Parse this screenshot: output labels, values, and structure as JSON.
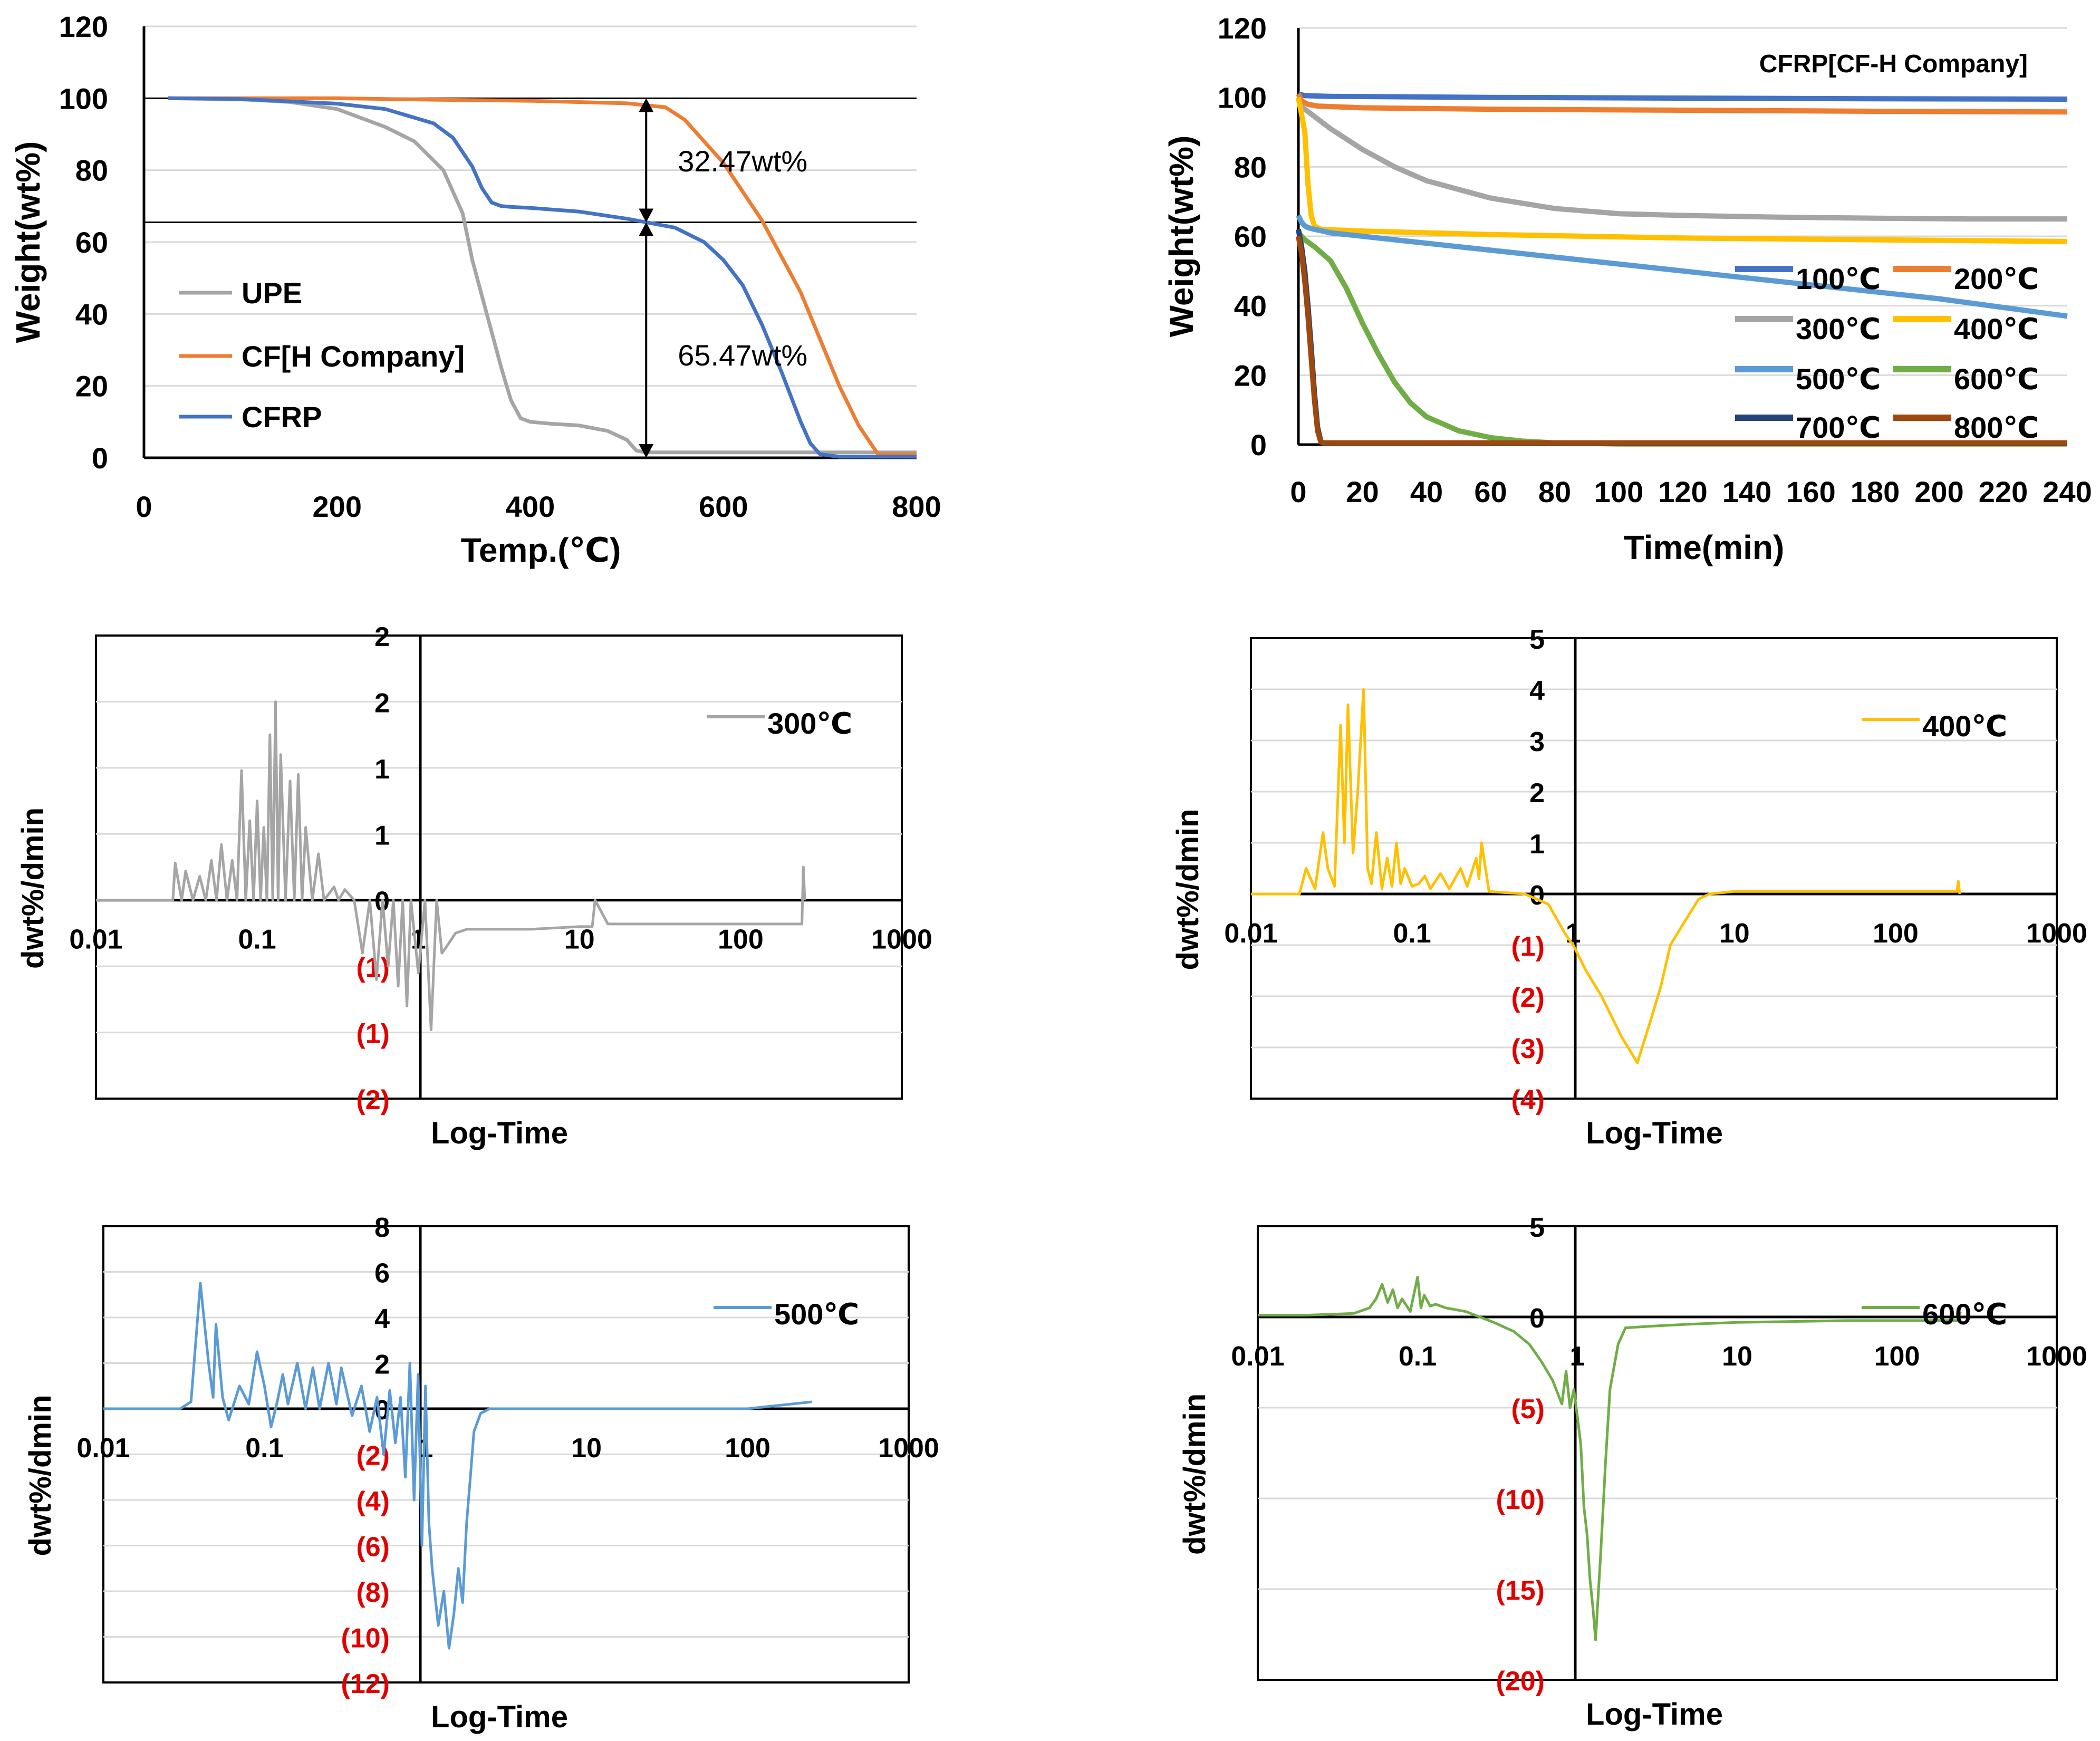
{
  "chart_data": [
    {
      "id": "tga",
      "type": "line",
      "xlabel": "Temp.(℃)",
      "ylabel": "Weight(wt%)",
      "xlim": [
        0,
        800
      ],
      "ylim": [
        0,
        120
      ],
      "xticks": [
        "0",
        "200",
        "400",
        "600",
        "800"
      ],
      "yticks": [
        "0",
        "20",
        "40",
        "60",
        "80",
        "100",
        "120"
      ],
      "reference_lines_y": [
        100,
        65.5
      ],
      "annotations": [
        {
          "text": "32.47wt%",
          "x": 520,
          "y": 82
        },
        {
          "text": "65.47wt%",
          "x": 520,
          "y": 28
        }
      ],
      "series": [
        {
          "name": "UPE",
          "color": "#a5a5a5",
          "x": [
            25,
            100,
            150,
            200,
            250,
            280,
            310,
            330,
            340,
            350,
            360,
            370,
            380,
            390,
            400,
            420,
            450,
            480,
            500,
            510,
            520,
            600,
            700,
            800
          ],
          "y": [
            100,
            99.7,
            99,
            97,
            92,
            88,
            80,
            68,
            55,
            45,
            35,
            25,
            16,
            11,
            10,
            9.5,
            9,
            7.5,
            5,
            2,
            1.5,
            1.5,
            1.5,
            1.5
          ]
        },
        {
          "name": "CF[H Company]",
          "color": "#ed7d31",
          "x": [
            25,
            100,
            200,
            300,
            400,
            500,
            540,
            560,
            580,
            600,
            640,
            680,
            700,
            720,
            740,
            760,
            800
          ],
          "y": [
            100,
            100,
            100,
            99.6,
            99.3,
            98.6,
            97.5,
            94,
            88,
            82,
            66,
            46,
            33,
            20,
            9,
            1,
            1
          ]
        },
        {
          "name": "CFRP",
          "color": "#4472c4",
          "x": [
            25,
            100,
            200,
            250,
            300,
            320,
            340,
            350,
            360,
            370,
            380,
            400,
            450,
            500,
            550,
            580,
            600,
            620,
            640,
            660,
            680,
            690,
            700,
            720,
            800
          ],
          "y": [
            100,
            99.8,
            98.5,
            97,
            93,
            89,
            81,
            75,
            71,
            70,
            69.8,
            69.5,
            68.5,
            66.5,
            64,
            60,
            55,
            48,
            37,
            24,
            10,
            4,
            1,
            0.3,
            0.3
          ]
        }
      ]
    },
    {
      "id": "isothermal",
      "type": "line",
      "title": "CFRP[CF-H Company]",
      "xlabel": "Time(min)",
      "ylabel": "Weight(wt%)",
      "xlim": [
        0,
        240
      ],
      "ylim": [
        0,
        120
      ],
      "xticks": [
        "0",
        "20",
        "40",
        "60",
        "80",
        "100",
        "120",
        "140",
        "160",
        "180",
        "200",
        "220",
        "240"
      ],
      "yticks": [
        "0",
        "20",
        "40",
        "60",
        "80",
        "100",
        "120"
      ],
      "series": [
        {
          "name": "100℃",
          "color": "#4472c4",
          "x": [
            0,
            2,
            10,
            60,
            120,
            180,
            240
          ],
          "y": [
            101,
            100.5,
            100.3,
            100,
            99.8,
            99.6,
            99.5
          ]
        },
        {
          "name": "200℃",
          "color": "#ed7d31",
          "x": [
            0,
            1,
            3,
            6,
            20,
            60,
            120,
            180,
            240
          ],
          "y": [
            101,
            99,
            98,
            97.5,
            97,
            96.6,
            96.3,
            96,
            95.8
          ]
        },
        {
          "name": "300℃",
          "color": "#a5a5a5",
          "x": [
            0,
            10,
            20,
            30,
            40,
            60,
            80,
            100,
            120,
            150,
            180,
            210,
            240
          ],
          "y": [
            98,
            91,
            85,
            80,
            76,
            71,
            68,
            66.5,
            66,
            65.5,
            65.2,
            65,
            65
          ]
        },
        {
          "name": "400℃",
          "color": "#ffc000",
          "x": [
            0,
            2,
            3,
            4,
            5,
            7,
            20,
            60,
            120,
            180,
            240
          ],
          "y": [
            100,
            90,
            75,
            66,
            63,
            62,
            61.5,
            60.5,
            59.5,
            59,
            58.5
          ]
        },
        {
          "name": "500℃",
          "color": "#5b9bd5",
          "x": [
            0,
            1,
            2,
            3,
            5,
            10,
            40,
            80,
            120,
            160,
            200,
            240
          ],
          "y": [
            66,
            64,
            63,
            62.5,
            62,
            61,
            58,
            54,
            50,
            46,
            42,
            37
          ]
        },
        {
          "name": "600℃",
          "color": "#70ad47",
          "x": [
            0,
            2,
            5,
            10,
            15,
            20,
            25,
            30,
            35,
            40,
            50,
            60,
            70,
            80,
            100,
            240
          ],
          "y": [
            61,
            59,
            57,
            53,
            45,
            35,
            26,
            18,
            12,
            8,
            4,
            2,
            1,
            0.5,
            0.2,
            0.2
          ]
        },
        {
          "name": "700℃",
          "color": "#264478",
          "x": [
            0,
            1,
            2,
            3,
            4,
            5,
            6,
            7,
            8,
            240
          ],
          "y": [
            62,
            57,
            50,
            40,
            28,
            15,
            5,
            1,
            0.3,
            0.3
          ]
        },
        {
          "name": "800℃",
          "color": "#9e480e",
          "x": [
            0,
            1,
            2,
            3,
            4,
            5,
            6,
            7,
            8,
            240
          ],
          "y": [
            60,
            55,
            47,
            37,
            25,
            13,
            4,
            0.8,
            0.5,
            0.5
          ]
        }
      ]
    },
    {
      "id": "dtg300",
      "type": "line",
      "legend": "300℃",
      "color": "#a5a5a5",
      "xlabel": "Log-Time",
      "ylabel": "dwt%/dmin",
      "xscale": "log",
      "xlim": [
        0.01,
        1000
      ],
      "ylim": [
        -1.5,
        2
      ],
      "xticks": [
        "0.01",
        "0.1",
        "1",
        "10",
        "100",
        "1000"
      ],
      "yticks": [
        "(2)",
        "(1)",
        "(1)",
        "0",
        "1",
        "1",
        "2",
        "2"
      ],
      "ytick_values": [
        -1.5,
        -1,
        -0.5,
        0,
        0.5,
        1,
        1.5,
        2
      ],
      "x": [
        0.01,
        0.03,
        0.031,
        0.034,
        0.036,
        0.04,
        0.044,
        0.048,
        0.052,
        0.056,
        0.06,
        0.065,
        0.07,
        0.075,
        0.08,
        0.085,
        0.09,
        0.095,
        0.1,
        0.105,
        0.11,
        0.115,
        0.12,
        0.125,
        0.13,
        0.135,
        0.14,
        0.15,
        0.16,
        0.17,
        0.18,
        0.19,
        0.2,
        0.22,
        0.24,
        0.26,
        0.3,
        0.32,
        0.35,
        0.4,
        0.45,
        0.5,
        0.55,
        0.6,
        0.65,
        0.7,
        0.75,
        0.8,
        0.85,
        0.9,
        1.0,
        1.1,
        1.2,
        1.3,
        1.4,
        1.5,
        1.7,
        2.0,
        3,
        5,
        10,
        12,
        12.5,
        15,
        30,
        60,
        100,
        200,
        240,
        245,
        250
      ],
      "y": [
        0,
        0,
        0.28,
        0,
        0.22,
        0,
        0.18,
        0,
        0.3,
        0,
        0.42,
        0,
        0.3,
        0,
        0.98,
        0,
        0.6,
        0,
        0.75,
        0,
        0.55,
        0,
        1.25,
        0,
        1.5,
        0,
        1.1,
        0,
        0.9,
        0,
        0.95,
        0,
        0.55,
        0,
        0.35,
        0,
        0.1,
        0,
        0.08,
        0,
        -0.4,
        0,
        -0.6,
        0,
        -0.5,
        0,
        -0.65,
        0,
        -0.8,
        0,
        -0.55,
        0,
        -0.98,
        0,
        -0.4,
        -0.35,
        -0.25,
        -0.22,
        -0.22,
        -0.22,
        -0.2,
        -0.2,
        0,
        -0.18,
        -0.18,
        -0.18,
        -0.18,
        -0.18,
        -0.18,
        0.25,
        0
      ]
    },
    {
      "id": "dtg400",
      "type": "line",
      "legend": "400℃",
      "color": "#ffc000",
      "xlabel": "Log-Time",
      "ylabel": "dwt%/dmin",
      "xscale": "log",
      "xlim": [
        0.01,
        1000
      ],
      "ylim": [
        -4,
        5
      ],
      "xticks": [
        "0.01",
        "0.1",
        "1",
        "10",
        "100",
        "1000"
      ],
      "yticks": [
        "(4)",
        "(3)",
        "(2)",
        "(1)",
        "0",
        "1",
        "2",
        "3",
        "4",
        "5"
      ],
      "ytick_values": [
        -4,
        -3,
        -2,
        -1,
        0,
        1,
        2,
        3,
        4,
        5
      ],
      "x": [
        0.01,
        0.02,
        0.022,
        0.025,
        0.028,
        0.03,
        0.033,
        0.036,
        0.038,
        0.04,
        0.043,
        0.046,
        0.05,
        0.053,
        0.056,
        0.06,
        0.065,
        0.07,
        0.075,
        0.08,
        0.085,
        0.09,
        0.1,
        0.11,
        0.12,
        0.13,
        0.15,
        0.17,
        0.2,
        0.22,
        0.25,
        0.26,
        0.27,
        0.3,
        0.5,
        0.7,
        0.9,
        1.0,
        1.2,
        1.5,
        2.0,
        2.5,
        3.0,
        3.5,
        4.0,
        5.0,
        6.0,
        7.0,
        10,
        50,
        100,
        240,
        245,
        250
      ],
      "y": [
        0,
        0,
        0.5,
        0.1,
        1.2,
        0.5,
        0.15,
        3.3,
        1.0,
        3.7,
        0.8,
        2.0,
        4.0,
        0.5,
        0.2,
        1.2,
        0.1,
        0.7,
        0.15,
        1.0,
        0.2,
        0.5,
        0.15,
        0.2,
        0.35,
        0.1,
        0.4,
        0.1,
        0.5,
        0.15,
        0.7,
        0.3,
        1.0,
        0.05,
        0,
        -0.2,
        -0.8,
        -1.0,
        -1.5,
        -2.0,
        -2.8,
        -3.3,
        -2.5,
        -1.8,
        -1.0,
        -0.5,
        -0.1,
        0,
        0.05,
        0.05,
        0.05,
        0.05,
        0.25,
        0
      ]
    },
    {
      "id": "dtg500",
      "type": "line",
      "legend": "500℃",
      "color": "#5b9bd5",
      "xlabel": "Log-Time",
      "ylabel": "dwt%/dmin",
      "xscale": "log",
      "xlim": [
        0.01,
        1000
      ],
      "ylim": [
        -12,
        8
      ],
      "xticks": [
        "0.01",
        "0.1",
        "1",
        "10",
        "100",
        "1000"
      ],
      "yticks": [
        "(12)",
        "(10)",
        "(8)",
        "(6)",
        "(4)",
        "(2)",
        "0",
        "2",
        "4",
        "6",
        "8"
      ],
      "ytick_values": [
        -12,
        -10,
        -8,
        -6,
        -4,
        -2,
        0,
        2,
        4,
        6,
        8
      ],
      "x": [
        0.01,
        0.03,
        0.035,
        0.04,
        0.045,
        0.048,
        0.05,
        0.055,
        0.06,
        0.07,
        0.08,
        0.09,
        0.1,
        0.11,
        0.12,
        0.13,
        0.14,
        0.16,
        0.18,
        0.2,
        0.22,
        0.25,
        0.28,
        0.3,
        0.35,
        0.4,
        0.45,
        0.5,
        0.55,
        0.6,
        0.65,
        0.7,
        0.75,
        0.8,
        0.85,
        0.9,
        0.95,
        1.0,
        1.05,
        1.1,
        1.2,
        1.3,
        1.4,
        1.5,
        1.6,
        1.7,
        1.8,
        1.9,
        2.0,
        2.2,
        2.5,
        3,
        5,
        10,
        50,
        100,
        250
      ],
      "y": [
        0,
        0,
        0.3,
        5.5,
        2.0,
        0.5,
        3.7,
        0.5,
        -0.5,
        1.0,
        0.2,
        2.5,
        1.0,
        -0.8,
        0.3,
        1.5,
        0.2,
        2.0,
        0.0,
        1.8,
        0.0,
        2.0,
        0.2,
        1.8,
        -0.3,
        1.0,
        -1.0,
        0.5,
        -2.0,
        0.8,
        -1.5,
        0.5,
        -3.0,
        2.0,
        -4.0,
        1.5,
        -6.0,
        1.0,
        -5.0,
        -7.0,
        -9.5,
        -8.0,
        -10.5,
        -9.0,
        -7.0,
        -8.5,
        -5.0,
        -3.0,
        -1.0,
        -0.2,
        0,
        0,
        0,
        0,
        0,
        0,
        0.3
      ]
    },
    {
      "id": "dtg600",
      "type": "line",
      "legend": "600℃",
      "color": "#70ad47",
      "xlabel": "Log-Time",
      "ylabel": "dwt%/dmin",
      "xscale": "log",
      "xlim": [
        0.01,
        1000
      ],
      "ylim": [
        -20,
        5
      ],
      "xticks": [
        "0.01",
        "0.1",
        "1",
        "10",
        "100",
        "1000"
      ],
      "yticks": [
        "(20)",
        "(15)",
        "(10)",
        "(5)",
        "0",
        "5"
      ],
      "ytick_values": [
        -20,
        -15,
        -10,
        -5,
        0,
        5
      ],
      "x": [
        0.01,
        0.02,
        0.03,
        0.04,
        0.05,
        0.055,
        0.06,
        0.065,
        0.07,
        0.075,
        0.08,
        0.09,
        0.1,
        0.105,
        0.11,
        0.12,
        0.13,
        0.15,
        0.2,
        0.3,
        0.4,
        0.5,
        0.6,
        0.7,
        0.8,
        0.85,
        0.9,
        0.95,
        1.0,
        1.05,
        1.1,
        1.15,
        1.2,
        1.25,
        1.3,
        1.4,
        1.5,
        1.6,
        1.8,
        2.0,
        3.0,
        5,
        10,
        50,
        100,
        240,
        250
      ],
      "y": [
        0.1,
        0.1,
        0.15,
        0.2,
        0.5,
        1.0,
        1.8,
        0.8,
        1.5,
        0.5,
        1.0,
        0.3,
        2.2,
        0.5,
        1.2,
        0.6,
        0.7,
        0.5,
        0.3,
        -0.3,
        -0.8,
        -1.5,
        -2.5,
        -3.5,
        -4.8,
        -3.0,
        -5.0,
        -4.0,
        -5.5,
        -7.0,
        -10.5,
        -12.0,
        -14.5,
        -16.0,
        -17.8,
        -13.0,
        -8.0,
        -4.0,
        -1.5,
        -0.6,
        -0.5,
        -0.4,
        -0.3,
        -0.2,
        -0.2,
        -0.2,
        0.3
      ]
    }
  ],
  "legends": {
    "tga": [
      "UPE",
      "CF[H Company]",
      "CFRP"
    ],
    "isothermal": [
      "100℃",
      "200℃",
      "300℃",
      "400℃",
      "500℃",
      "600℃",
      "700℃",
      "800℃"
    ]
  }
}
